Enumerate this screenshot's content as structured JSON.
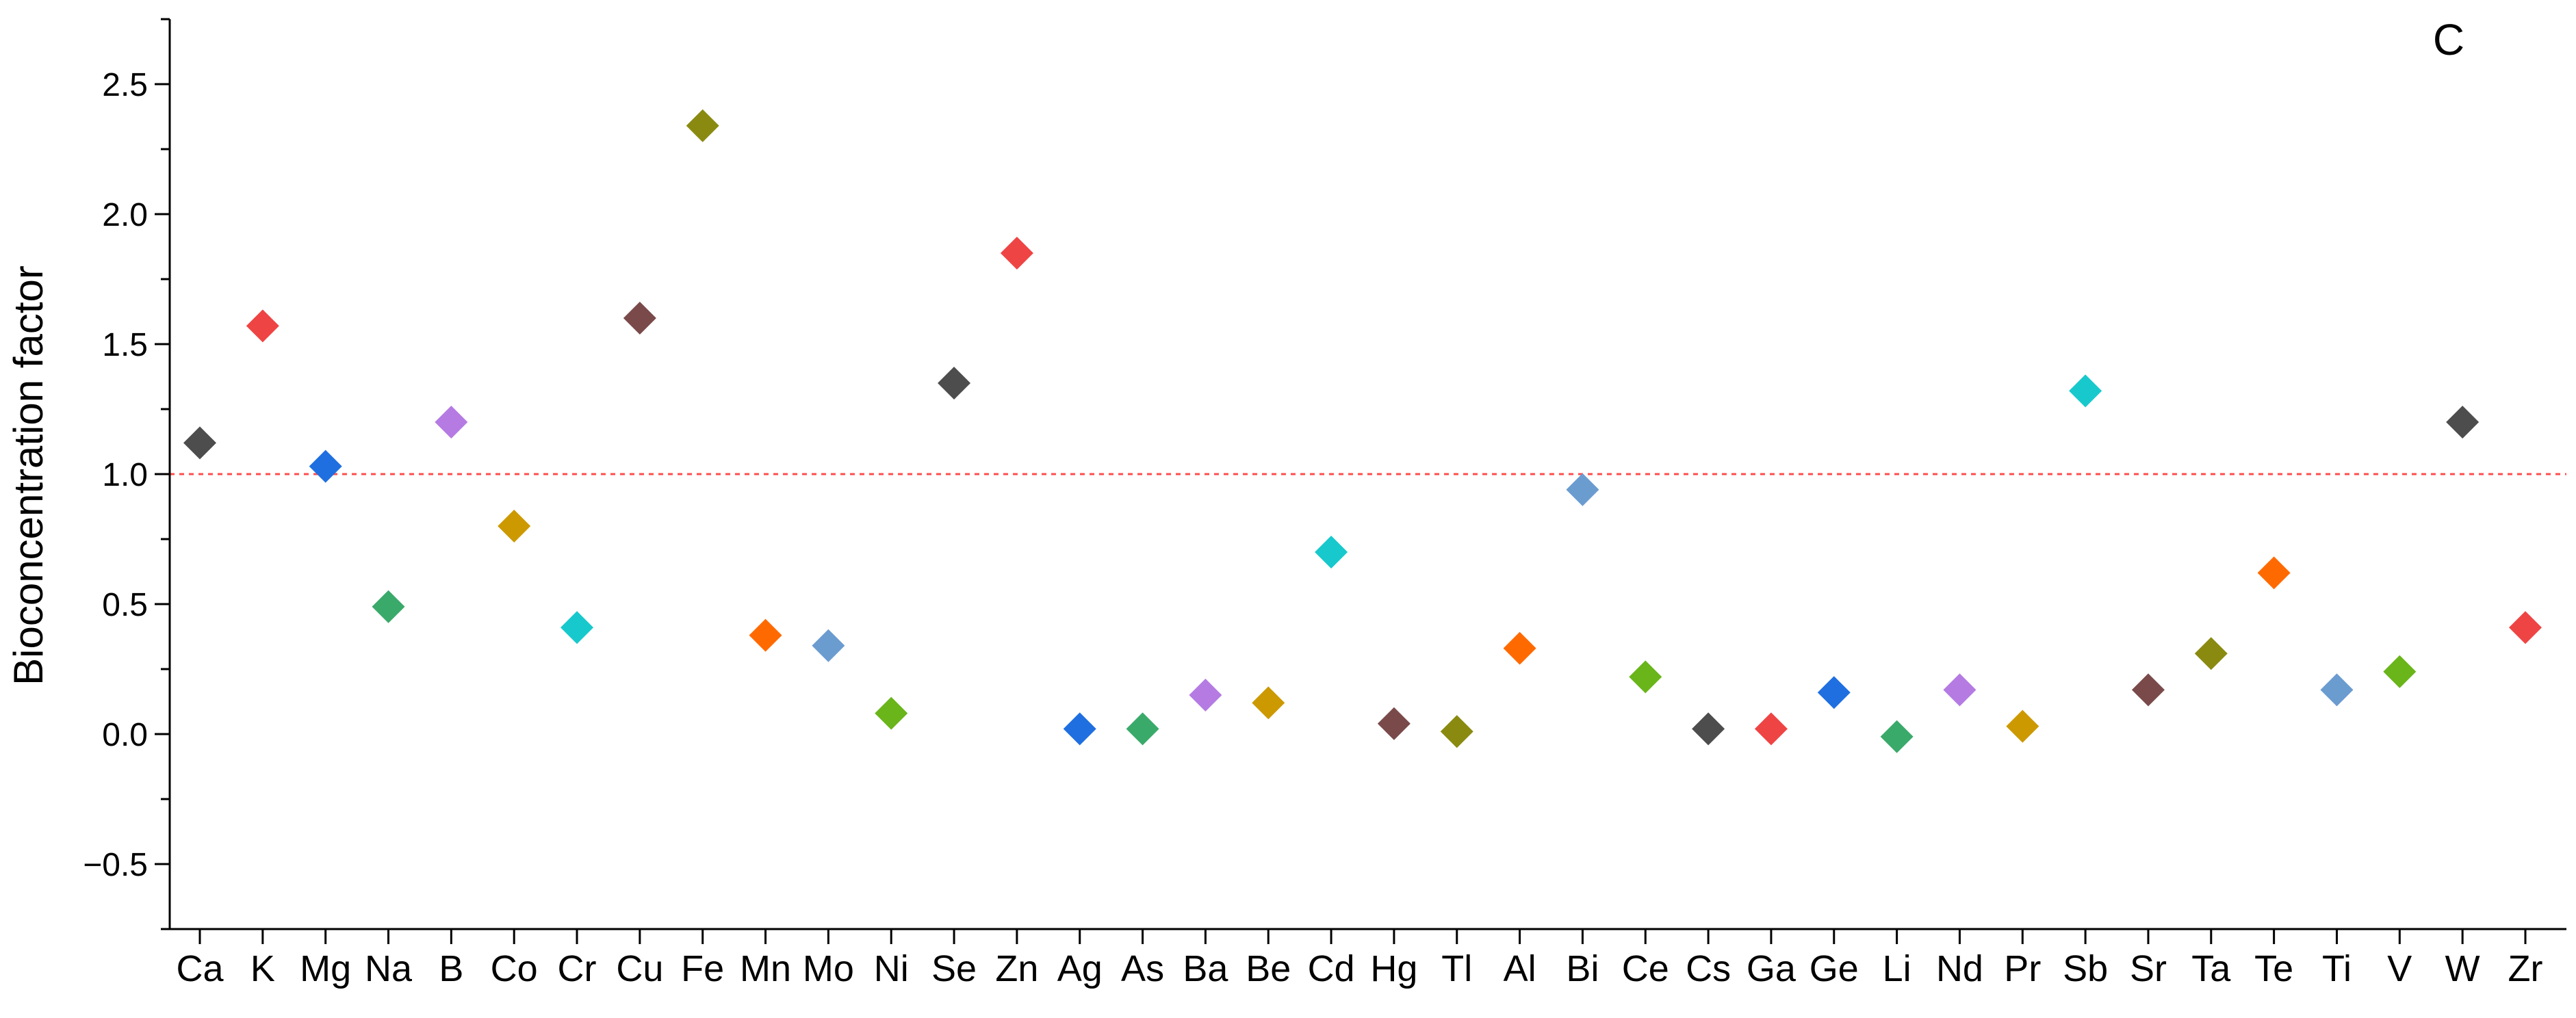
{
  "chart_data": {
    "type": "scatter",
    "panel_label": "C",
    "ylabel": "Bioconcentration factor",
    "xlabel": "",
    "ylim": [
      -0.75,
      2.75
    ],
    "yticks": [
      "-0.5",
      "0.0",
      "0.5",
      "1.0",
      "1.5",
      "2.0",
      "2.5"
    ],
    "reference_line": {
      "y": 1.0,
      "color": "#ff4d4d",
      "style": "dashed"
    },
    "marker": "diamond",
    "grid": false,
    "categories": [
      "Ca",
      "K",
      "Mg",
      "Na",
      "B",
      "Co",
      "Cr",
      "Cu",
      "Fe",
      "Mn",
      "Mo",
      "Ni",
      "Se",
      "Zn",
      "Ag",
      "As",
      "Ba",
      "Be",
      "Cd",
      "Hg",
      "Tl",
      "Al",
      "Bi",
      "Ce",
      "Cs",
      "Ga",
      "Ge",
      "Li",
      "Nd",
      "Pr",
      "Sb",
      "Sr",
      "Ta",
      "Te",
      "Ti",
      "V",
      "W",
      "Zr"
    ],
    "values": [
      1.12,
      1.57,
      1.03,
      0.49,
      1.2,
      0.8,
      0.41,
      1.6,
      2.34,
      0.38,
      0.34,
      0.08,
      1.35,
      1.85,
      0.02,
      0.02,
      0.15,
      0.12,
      0.7,
      0.04,
      0.01,
      0.33,
      0.94,
      0.22,
      0.02,
      0.02,
      0.16,
      -0.01,
      0.17,
      0.03,
      1.32,
      0.17,
      0.31,
      0.62,
      0.17,
      0.24,
      1.2,
      0.41
    ],
    "colors": [
      "#4d4d4d",
      "#ef4444",
      "#1f6fe0",
      "#3aaa6a",
      "#b57be3",
      "#cc9900",
      "#17c9cc",
      "#7a4a4a",
      "#8a8a10",
      "#ff6a00",
      "#6b9cd0",
      "#69b51a",
      "#4d4d4d",
      "#ef4444",
      "#1f6fe0",
      "#3aaa6a",
      "#b57be3",
      "#cc9900",
      "#17c9cc",
      "#7a4a4a",
      "#8a8a10",
      "#ff6a00",
      "#6b9cd0",
      "#69b51a",
      "#4d4d4d",
      "#ef4444",
      "#1f6fe0",
      "#3aaa6a",
      "#b57be3",
      "#cc9900",
      "#17c9cc",
      "#7a4a4a",
      "#8a8a10",
      "#ff6a00",
      "#6b9cd0",
      "#69b51a",
      "#4d4d4d",
      "#ef4444"
    ]
  }
}
